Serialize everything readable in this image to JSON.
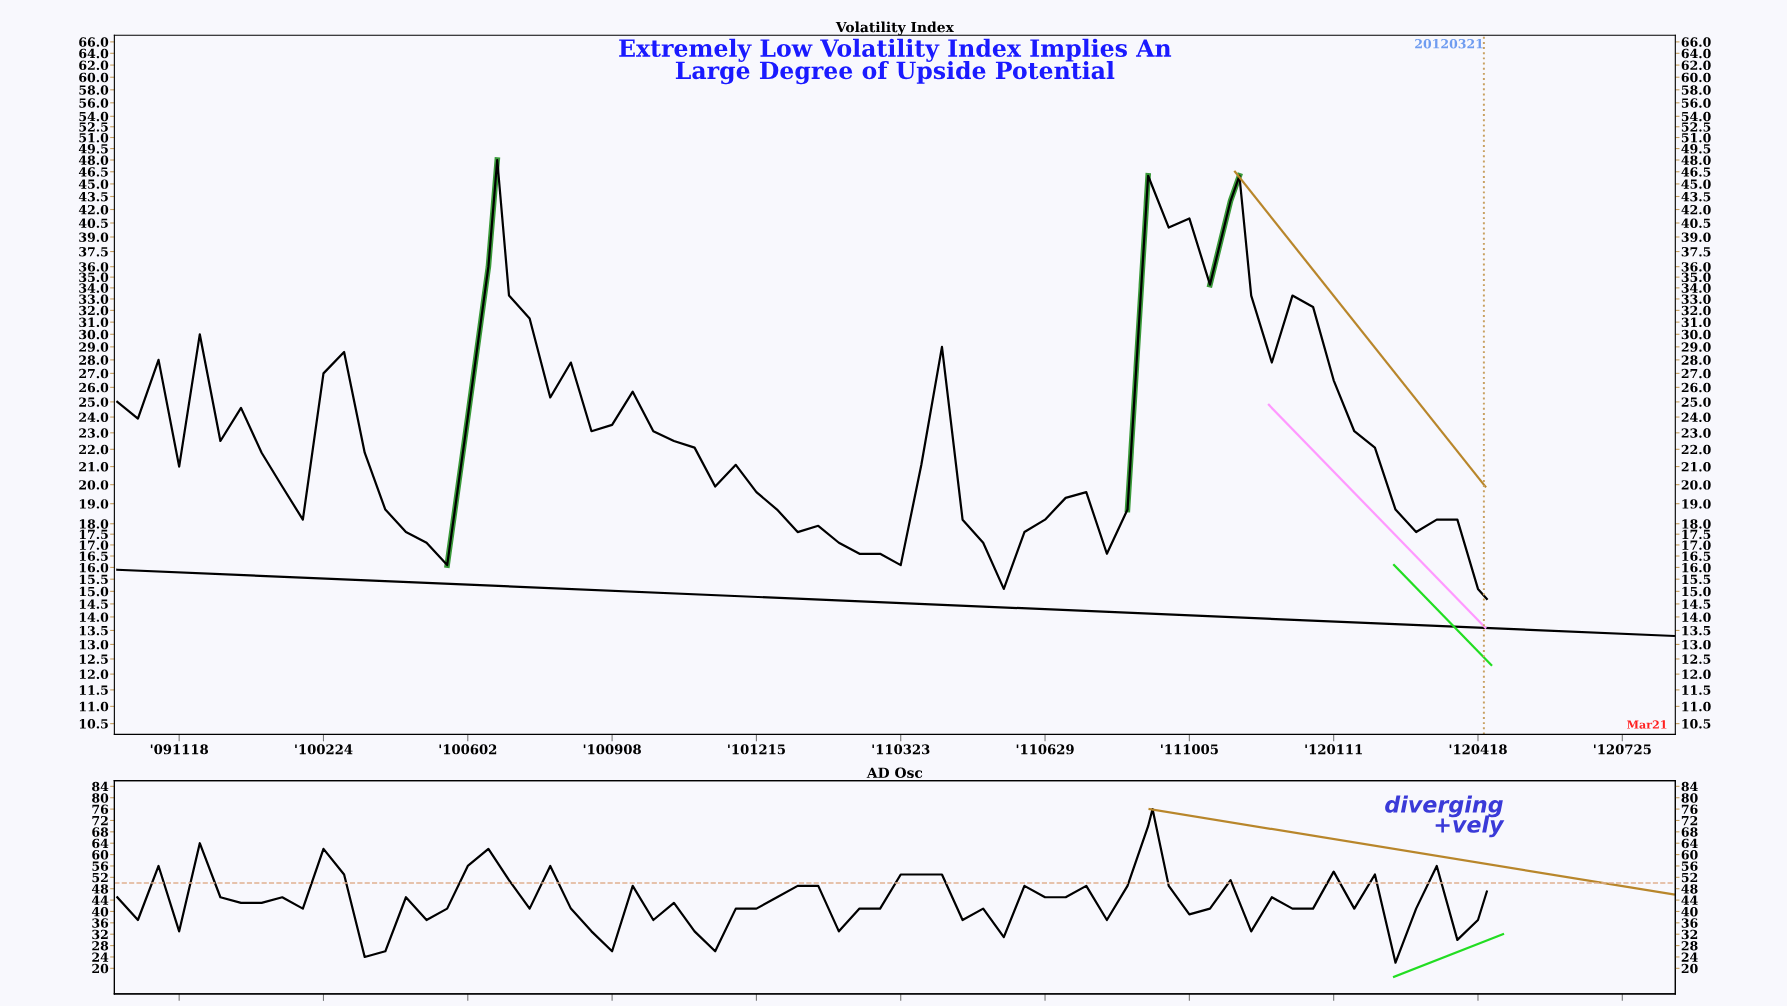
{
  "chart_data": [
    {
      "type": "line",
      "title": "Volatility Index",
      "subtitle": "Extremely Low Volatility Index Implies An\nLarge Degree of Upside Potential",
      "log": true,
      "xlim": [
        "2009-10-05",
        "2012-08-30"
      ],
      "xticks": [
        {
          "value": "2009-11-18",
          "label": "'091118"
        },
        {
          "value": "2010-02-24",
          "label": "'100224"
        },
        {
          "value": "2010-06-02",
          "label": "'100602"
        },
        {
          "value": "2010-09-08",
          "label": "'100908"
        },
        {
          "value": "2010-12-15",
          "label": "'101215"
        },
        {
          "value": "2011-03-23",
          "label": "'110323"
        },
        {
          "value": "2011-06-29",
          "label": "'110629"
        },
        {
          "value": "2011-10-05",
          "label": "'111005"
        },
        {
          "value": "2012-01-11",
          "label": "'120111"
        },
        {
          "value": "2012-04-18",
          "label": "'120418"
        },
        {
          "value": "2012-07-25",
          "label": "'120725"
        }
      ],
      "ylim": [
        10.2,
        67.2
      ],
      "yticks": [
        {
          "value": 10.5,
          "label": "10.5"
        },
        {
          "value": 11,
          "label": "11.0"
        },
        {
          "value": 11.5,
          "label": "11.5"
        },
        {
          "value": 12,
          "label": "12.0"
        },
        {
          "value": 12.5,
          "label": "12.5"
        },
        {
          "value": 13,
          "label": "13.0"
        },
        {
          "value": 13.5,
          "label": "13.5"
        },
        {
          "value": 14,
          "label": "14.0"
        },
        {
          "value": 14.5,
          "label": "14.5"
        },
        {
          "value": 15,
          "label": "15.0"
        },
        {
          "value": 15.5,
          "label": "15.5"
        },
        {
          "value": 16,
          "label": "16.0"
        },
        {
          "value": 16.5,
          "label": "16.5"
        },
        {
          "value": 17,
          "label": "17.0"
        },
        {
          "value": 17.5,
          "label": "17.5"
        },
        {
          "value": 18,
          "label": "18.0"
        },
        {
          "value": 19,
          "label": "19.0"
        },
        {
          "value": 20,
          "label": "20.0"
        },
        {
          "value": 21,
          "label": "21.0"
        },
        {
          "value": 22,
          "label": "22.0"
        },
        {
          "value": 23,
          "label": "23.0"
        },
        {
          "value": 24,
          "label": "24.0"
        },
        {
          "value": 25,
          "label": "25.0"
        },
        {
          "value": 26,
          "label": "26.0"
        },
        {
          "value": 27,
          "label": "27.0"
        },
        {
          "value": 28,
          "label": "28.0"
        },
        {
          "value": 29,
          "label": "29.0"
        },
        {
          "value": 30,
          "label": "30.0"
        },
        {
          "value": 31,
          "label": "31.0"
        },
        {
          "value": 32,
          "label": "32.0"
        },
        {
          "value": 33,
          "label": "33.0"
        },
        {
          "value": 34,
          "label": "34.0"
        },
        {
          "value": 35,
          "label": "35.0"
        },
        {
          "value": 36,
          "label": "36.0"
        },
        {
          "value": 37.5,
          "label": "37.5"
        },
        {
          "value": 39,
          "label": "39.0"
        },
        {
          "value": 40.5,
          "label": "40.5"
        },
        {
          "value": 42,
          "label": "42.0"
        },
        {
          "value": 43.5,
          "label": "43.5"
        },
        {
          "value": 45,
          "label": "45.0"
        },
        {
          "value": 46.5,
          "label": "46.5"
        },
        {
          "value": 48,
          "label": "48.0"
        },
        {
          "value": 49.5,
          "label": "49.5"
        },
        {
          "value": 51,
          "label": "51.0"
        },
        {
          "value": 52.5,
          "label": "52.5"
        },
        {
          "value": 54,
          "label": "54.0"
        },
        {
          "value": 56,
          "label": "56.0"
        },
        {
          "value": 58,
          "label": "58.0"
        },
        {
          "value": 60,
          "label": "60.0"
        },
        {
          "value": 62,
          "label": "62.0"
        },
        {
          "value": 64,
          "label": "64.0"
        },
        {
          "value": 66,
          "label": "66.0"
        }
      ],
      "series": [
        {
          "color": "#3a9a3a",
          "x": [
            "2010-05-19",
            "2010-06-02",
            "2010-06-16",
            "2010-06-22"
          ],
          "values": [
            16.1,
            24.0,
            36.0,
            48.0
          ]
        },
        {
          "color": "#3a9a3a",
          "x": [
            "2011-08-24",
            "2011-09-07"
          ],
          "values": [
            18.7,
            46.0
          ]
        },
        {
          "color": "#3a9a3a",
          "x": [
            "2011-10-19",
            "2011-11-02",
            "2011-11-08"
          ],
          "values": [
            34.3,
            43.0,
            46.0
          ]
        },
        {
          "color": "#000000",
          "x": [
            "2009-10-07",
            "2009-10-21",
            "2009-11-04",
            "2009-11-18",
            "2009-12-02",
            "2009-12-16",
            "2009-12-30",
            "2010-01-13",
            "2010-01-27",
            "2010-02-10",
            "2010-02-24",
            "2010-03-10",
            "2010-03-24",
            "2010-04-07",
            "2010-04-21",
            "2010-05-05",
            "2010-05-19",
            "2010-06-02",
            "2010-06-16",
            "2010-06-22",
            "2010-06-30",
            "2010-07-14",
            "2010-07-28",
            "2010-08-11",
            "2010-08-25",
            "2010-09-08",
            "2010-09-22",
            "2010-10-06",
            "2010-10-20",
            "2010-11-03",
            "2010-11-17",
            "2010-12-01",
            "2010-12-15",
            "2010-12-29",
            "2011-01-12",
            "2011-01-26",
            "2011-02-09",
            "2011-02-23",
            "2011-03-09",
            "2011-03-23",
            "2011-04-06",
            "2011-04-20",
            "2011-05-04",
            "2011-05-18",
            "2011-06-01",
            "2011-06-15",
            "2011-06-29",
            "2011-07-13",
            "2011-07-27",
            "2011-08-10",
            "2011-08-24",
            "2011-09-07",
            "2011-09-21",
            "2011-10-05",
            "2011-10-19",
            "2011-11-02",
            "2011-11-08",
            "2011-11-16",
            "2011-11-30",
            "2011-12-14",
            "2011-12-28",
            "2012-01-11",
            "2012-01-25",
            "2012-02-08",
            "2012-02-22",
            "2012-03-07",
            "2012-03-21",
            "2012-04-04",
            "2012-04-18",
            "2012-04-24"
          ],
          "values": [
            25.0,
            23.9,
            28.0,
            21.0,
            30.0,
            22.5,
            24.6,
            21.8,
            19.9,
            18.2,
            27.0,
            28.6,
            21.8,
            18.7,
            17.6,
            17.1,
            16.1,
            24.0,
            36.0,
            48.0,
            33.3,
            31.3,
            25.3,
            27.8,
            23.1,
            23.5,
            25.7,
            23.1,
            22.5,
            22.1,
            19.9,
            21.1,
            19.6,
            18.7,
            17.6,
            17.9,
            17.1,
            16.6,
            16.6,
            16.1,
            21.1,
            29.0,
            18.2,
            17.1,
            15.1,
            17.6,
            18.2,
            19.3,
            19.6,
            16.6,
            18.7,
            46.0,
            40.0,
            41.0,
            34.3,
            43.0,
            46.0,
            33.3,
            27.8,
            33.3,
            32.3,
            26.5,
            23.1,
            22.1,
            18.7,
            17.6,
            18.2,
            18.2,
            15.1,
            14.7
          ]
        },
        {
          "color": "#000000",
          "x": [
            "2009-10-07",
            "2012-08-29"
          ],
          "values": [
            15.9,
            13.3
          ]
        },
        {
          "color": "#b8862b",
          "x": [
            "2011-11-05",
            "2012-04-23"
          ],
          "values": [
            46.5,
            19.9
          ]
        },
        {
          "color": "#ff99ff",
          "x": [
            "2011-11-28",
            "2012-04-23"
          ],
          "values": [
            24.8,
            13.6
          ]
        },
        {
          "color": "#22dd22",
          "x": [
            "2012-02-21",
            "2012-04-27"
          ],
          "values": [
            16.1,
            12.3
          ]
        }
      ],
      "ref_lines": [
        {
          "axis": "x",
          "value": "2012-04-22",
          "label": "20120321",
          "color": "#c8a060",
          "line_style": "dotted"
        }
      ],
      "annotations": [
        "Mar21"
      ]
    },
    {
      "type": "line",
      "title": "AD Osc",
      "tick_labels": "y",
      "xlim": [
        "2009-10-05",
        "2012-08-30"
      ],
      "xticks": [
        {
          "value": "2009-11-18",
          "label": null
        },
        {
          "value": "2010-02-24",
          "label": null
        },
        {
          "value": "2010-06-02",
          "label": null
        },
        {
          "value": "2010-09-08",
          "label": null
        },
        {
          "value": "2010-12-15",
          "label": null
        },
        {
          "value": "2011-03-23",
          "label": null
        },
        {
          "value": "2011-06-29",
          "label": null
        },
        {
          "value": "2011-10-05",
          "label": null
        },
        {
          "value": "2012-01-11",
          "label": null
        },
        {
          "value": "2012-04-18",
          "label": null
        },
        {
          "value": "2012-07-25",
          "label": null
        }
      ],
      "ylim": [
        11,
        86
      ],
      "yticks": [
        20,
        24,
        28,
        32,
        36,
        40,
        44,
        48,
        52,
        56,
        60,
        64,
        68,
        72,
        76,
        80,
        84
      ],
      "y2lim": [
        11,
        86
      ],
      "y2ticks": [
        20,
        24,
        28,
        32,
        36,
        40,
        44,
        48,
        52,
        56,
        60,
        64,
        68,
        72,
        76,
        80,
        84
      ],
      "series": [
        {
          "color": "#000000",
          "x": [
            "2009-10-07",
            "2009-10-21",
            "2009-11-04",
            "2009-11-18",
            "2009-12-02",
            "2009-12-16",
            "2009-12-30",
            "2010-01-13",
            "2010-01-27",
            "2010-02-10",
            "2010-02-24",
            "2010-03-10",
            "2010-03-24",
            "2010-04-07",
            "2010-04-21",
            "2010-05-05",
            "2010-05-19",
            "2010-06-02",
            "2010-06-16",
            "2010-06-30",
            "2010-07-14",
            "2010-07-28",
            "2010-08-11",
            "2010-08-25",
            "2010-09-08",
            "2010-09-22",
            "2010-10-06",
            "2010-10-20",
            "2010-11-03",
            "2010-11-17",
            "2010-12-01",
            "2010-12-15",
            "2010-12-29",
            "2011-01-12",
            "2011-01-26",
            "2011-02-09",
            "2011-02-23",
            "2011-03-09",
            "2011-03-23",
            "2011-04-06",
            "2011-04-20",
            "2011-05-04",
            "2011-05-18",
            "2011-06-01",
            "2011-06-15",
            "2011-06-29",
            "2011-07-13",
            "2011-07-27",
            "2011-08-10",
            "2011-08-24",
            "2011-09-07",
            "2011-09-10",
            "2011-09-21",
            "2011-10-05",
            "2011-10-19",
            "2011-11-02",
            "2011-11-16",
            "2011-11-30",
            "2011-12-14",
            "2011-12-28",
            "2012-01-11",
            "2012-01-25",
            "2012-02-08",
            "2012-02-22",
            "2012-03-07",
            "2012-03-21",
            "2012-04-04",
            "2012-04-18",
            "2012-04-24"
          ],
          "values": [
            45,
            37,
            56,
            33,
            64,
            45,
            43,
            43,
            45,
            41,
            62,
            53,
            24,
            26,
            45,
            37,
            41,
            56,
            62,
            51,
            41,
            56,
            41,
            33,
            26,
            49,
            37,
            43,
            33,
            26,
            41,
            41,
            45,
            49,
            49,
            33,
            41,
            41,
            53,
            53,
            53,
            37,
            41,
            31,
            49,
            45,
            45,
            49,
            37,
            49,
            70,
            76,
            49,
            39,
            41,
            51,
            33,
            45,
            41,
            41,
            54,
            41,
            53,
            22,
            41,
            56,
            30,
            37,
            47
          ]
        },
        {
          "color": "#b8862b",
          "x": [
            "2011-09-08",
            "2012-08-29"
          ],
          "values": [
            76,
            46
          ]
        },
        {
          "color": "#22dd22",
          "x": [
            "2012-02-21",
            "2012-05-05"
          ],
          "values": [
            17,
            32
          ]
        }
      ],
      "ref_lines": [
        {
          "axis": "y",
          "value": 50,
          "color": "#e0b090",
          "line_style": "dashed"
        }
      ],
      "annotations": [
        "diverging\n+vely"
      ]
    }
  ]
}
